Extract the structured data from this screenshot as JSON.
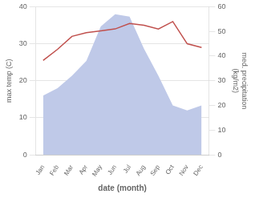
{
  "chart_data": {
    "type": "line",
    "categories": [
      "Jan",
      "Feb",
      "Mar",
      "Apr",
      "May",
      "Jun",
      "Jul",
      "Aug",
      "Sep",
      "Oct",
      "Nov",
      "Dec"
    ],
    "series": [
      {
        "type": "area",
        "axis": "y2",
        "color": "#bfc9e8",
        "values": [
          24,
          27,
          32,
          38,
          52,
          57,
          56,
          43,
          32,
          20,
          18,
          20
        ]
      },
      {
        "type": "line",
        "color": "#c0504d",
        "values": [
          25.5,
          28.5,
          32.0,
          33.0,
          33.5,
          34.0,
          35.5,
          35.0,
          34.0,
          36.0,
          30.0,
          29.0
        ]
      }
    ],
    "xlabel": "date (month)",
    "ylabel": "max temp (C)",
    "y2label": "med. precipitation\n(kg/m2)",
    "ylim": [
      0,
      40
    ],
    "yticks": [
      0,
      10,
      20,
      30,
      40
    ],
    "y2lim": [
      0,
      60
    ],
    "y2ticks": [
      0,
      10,
      20,
      30,
      40,
      50,
      60
    ],
    "grid": true
  }
}
